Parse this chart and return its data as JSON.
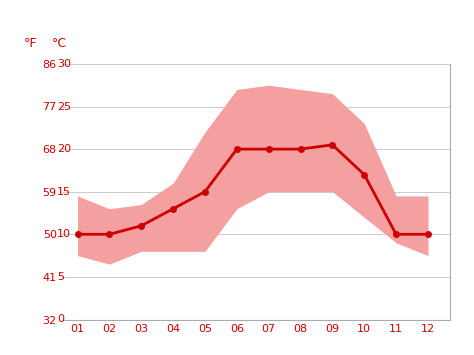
{
  "months": [
    1,
    2,
    3,
    4,
    5,
    6,
    7,
    8,
    9,
    10,
    11,
    12
  ],
  "month_labels": [
    "01",
    "02",
    "03",
    "04",
    "05",
    "06",
    "07",
    "08",
    "09",
    "10",
    "11",
    "12"
  ],
  "avg_temp_c": [
    10,
    10,
    11,
    13,
    15,
    20,
    20,
    20,
    20.5,
    17,
    10,
    10
  ],
  "max_temp_c": [
    14.5,
    13,
    13.5,
    16,
    22,
    27,
    27.5,
    27,
    26.5,
    23,
    14.5,
    14.5
  ],
  "min_temp_c": [
    7.5,
    6.5,
    8,
    8,
    8,
    13,
    15,
    15,
    15,
    12,
    9,
    7.5
  ],
  "band_color": "#f4a0a0",
  "line_color": "#cc0000",
  "line_width": 2.0,
  "marker": "o",
  "marker_size": 4,
  "ylim_c": [
    0,
    30
  ],
  "yticks_c": [
    0,
    5,
    10,
    15,
    20,
    25,
    30
  ],
  "yticks_f": [
    32,
    41,
    50,
    59,
    68,
    77,
    86
  ],
  "ylabel_c": "°C",
  "ylabel_f": "°F",
  "grid_color": "#cccccc",
  "background_color": "#ffffff",
  "tick_label_color": "#cc0000",
  "tick_fontsize": 8,
  "header_fontsize": 9
}
